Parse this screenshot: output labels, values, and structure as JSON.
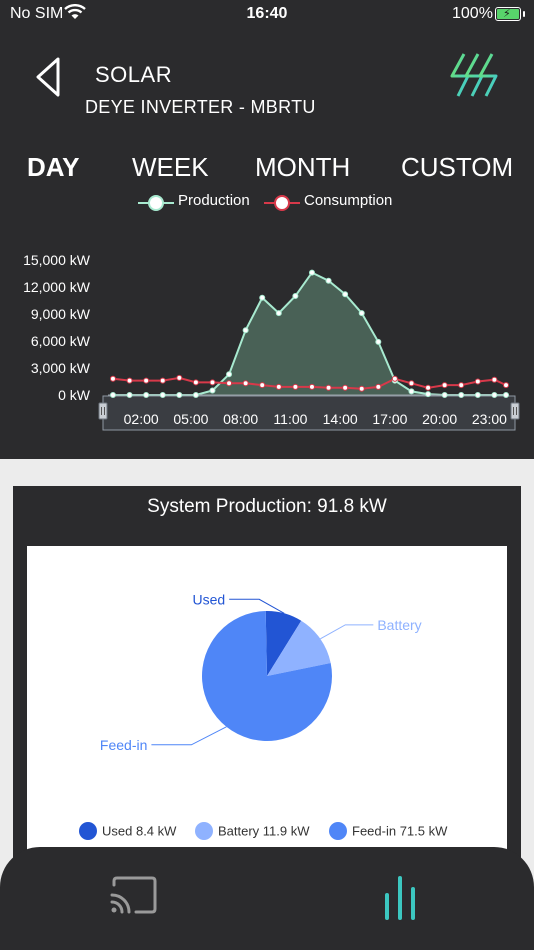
{
  "status_bar": {
    "carrier": "No SIM",
    "time": "16:40",
    "battery": "100%"
  },
  "header": {
    "title": "SOLAR",
    "subtitle": "DEYE INVERTER - MBRTU"
  },
  "tabs": [
    {
      "label": "DAY",
      "active": true
    },
    {
      "label": "WEEK",
      "active": false
    },
    {
      "label": "MONTH",
      "active": false
    },
    {
      "label": "CUSTOM",
      "active": false
    }
  ],
  "colors": {
    "production": "#a8ead0",
    "consumption": "#d8394a",
    "used": "#2255d4",
    "battery": "#8fb2ff",
    "feed_in": "#4f86f7",
    "accent": "#58d3a8"
  },
  "chart_data": [
    {
      "type": "area",
      "legend": [
        "Production",
        "Consumption"
      ],
      "x_ticks": [
        "02:00",
        "05:00",
        "08:00",
        "11:00",
        "14:00",
        "17:00",
        "20:00",
        "23:00"
      ],
      "y_ticks": [
        "15,000 kW",
        "12,000 kW",
        "9,000 kW",
        "6,000 kW",
        "3,000 kW",
        "0 kW"
      ],
      "ylim": [
        0,
        15000
      ],
      "xlim": [
        0,
        24
      ],
      "series": [
        {
          "name": "Production",
          "points": [
            [
              0.3,
              0
            ],
            [
              1.3,
              0
            ],
            [
              2.3,
              0
            ],
            [
              3.3,
              0
            ],
            [
              4.3,
              0
            ],
            [
              5.3,
              0
            ],
            [
              6.3,
              500
            ],
            [
              7.3,
              2300
            ],
            [
              8.3,
              7200
            ],
            [
              9.3,
              10800
            ],
            [
              10.3,
              9100
            ],
            [
              11.3,
              11000
            ],
            [
              12.3,
              13600
            ],
            [
              13.3,
              12700
            ],
            [
              14.3,
              11200
            ],
            [
              15.3,
              9100
            ],
            [
              16.3,
              5900
            ],
            [
              17.3,
              1600
            ],
            [
              18.3,
              400
            ],
            [
              19.3,
              100
            ],
            [
              20.3,
              0
            ],
            [
              21.3,
              0
            ],
            [
              22.3,
              0
            ],
            [
              23.3,
              0
            ],
            [
              24.0,
              0
            ]
          ]
        },
        {
          "name": "Consumption",
          "points": [
            [
              0.3,
              1800
            ],
            [
              1.3,
              1600
            ],
            [
              2.3,
              1600
            ],
            [
              3.3,
              1600
            ],
            [
              4.3,
              1900
            ],
            [
              5.3,
              1400
            ],
            [
              6.3,
              1400
            ],
            [
              7.3,
              1300
            ],
            [
              8.3,
              1300
            ],
            [
              9.3,
              1100
            ],
            [
              10.3,
              900
            ],
            [
              11.3,
              900
            ],
            [
              12.3,
              900
            ],
            [
              13.3,
              800
            ],
            [
              14.3,
              800
            ],
            [
              15.3,
              700
            ],
            [
              16.3,
              900
            ],
            [
              17.3,
              1800
            ],
            [
              18.3,
              1300
            ],
            [
              19.3,
              800
            ],
            [
              20.3,
              1100
            ],
            [
              21.3,
              1100
            ],
            [
              22.3,
              1500
            ],
            [
              23.3,
              1700
            ],
            [
              24.0,
              1100
            ]
          ]
        }
      ]
    },
    {
      "type": "pie",
      "title": "System Production: 91.8 kW",
      "slices": [
        {
          "name": "Used",
          "value": 8.4,
          "legend": "Used 8.4 kW"
        },
        {
          "name": "Battery",
          "value": 11.9,
          "legend": "Battery 11.9 kW"
        },
        {
          "name": "Feed-in",
          "value": 71.5,
          "legend": "Feed-in 71.5 kW"
        }
      ]
    }
  ],
  "icons": {
    "back": "chevron-left-icon",
    "logo": "lightning-logo-icon",
    "cast": "cast-icon",
    "stats": "bar-chart-icon"
  }
}
